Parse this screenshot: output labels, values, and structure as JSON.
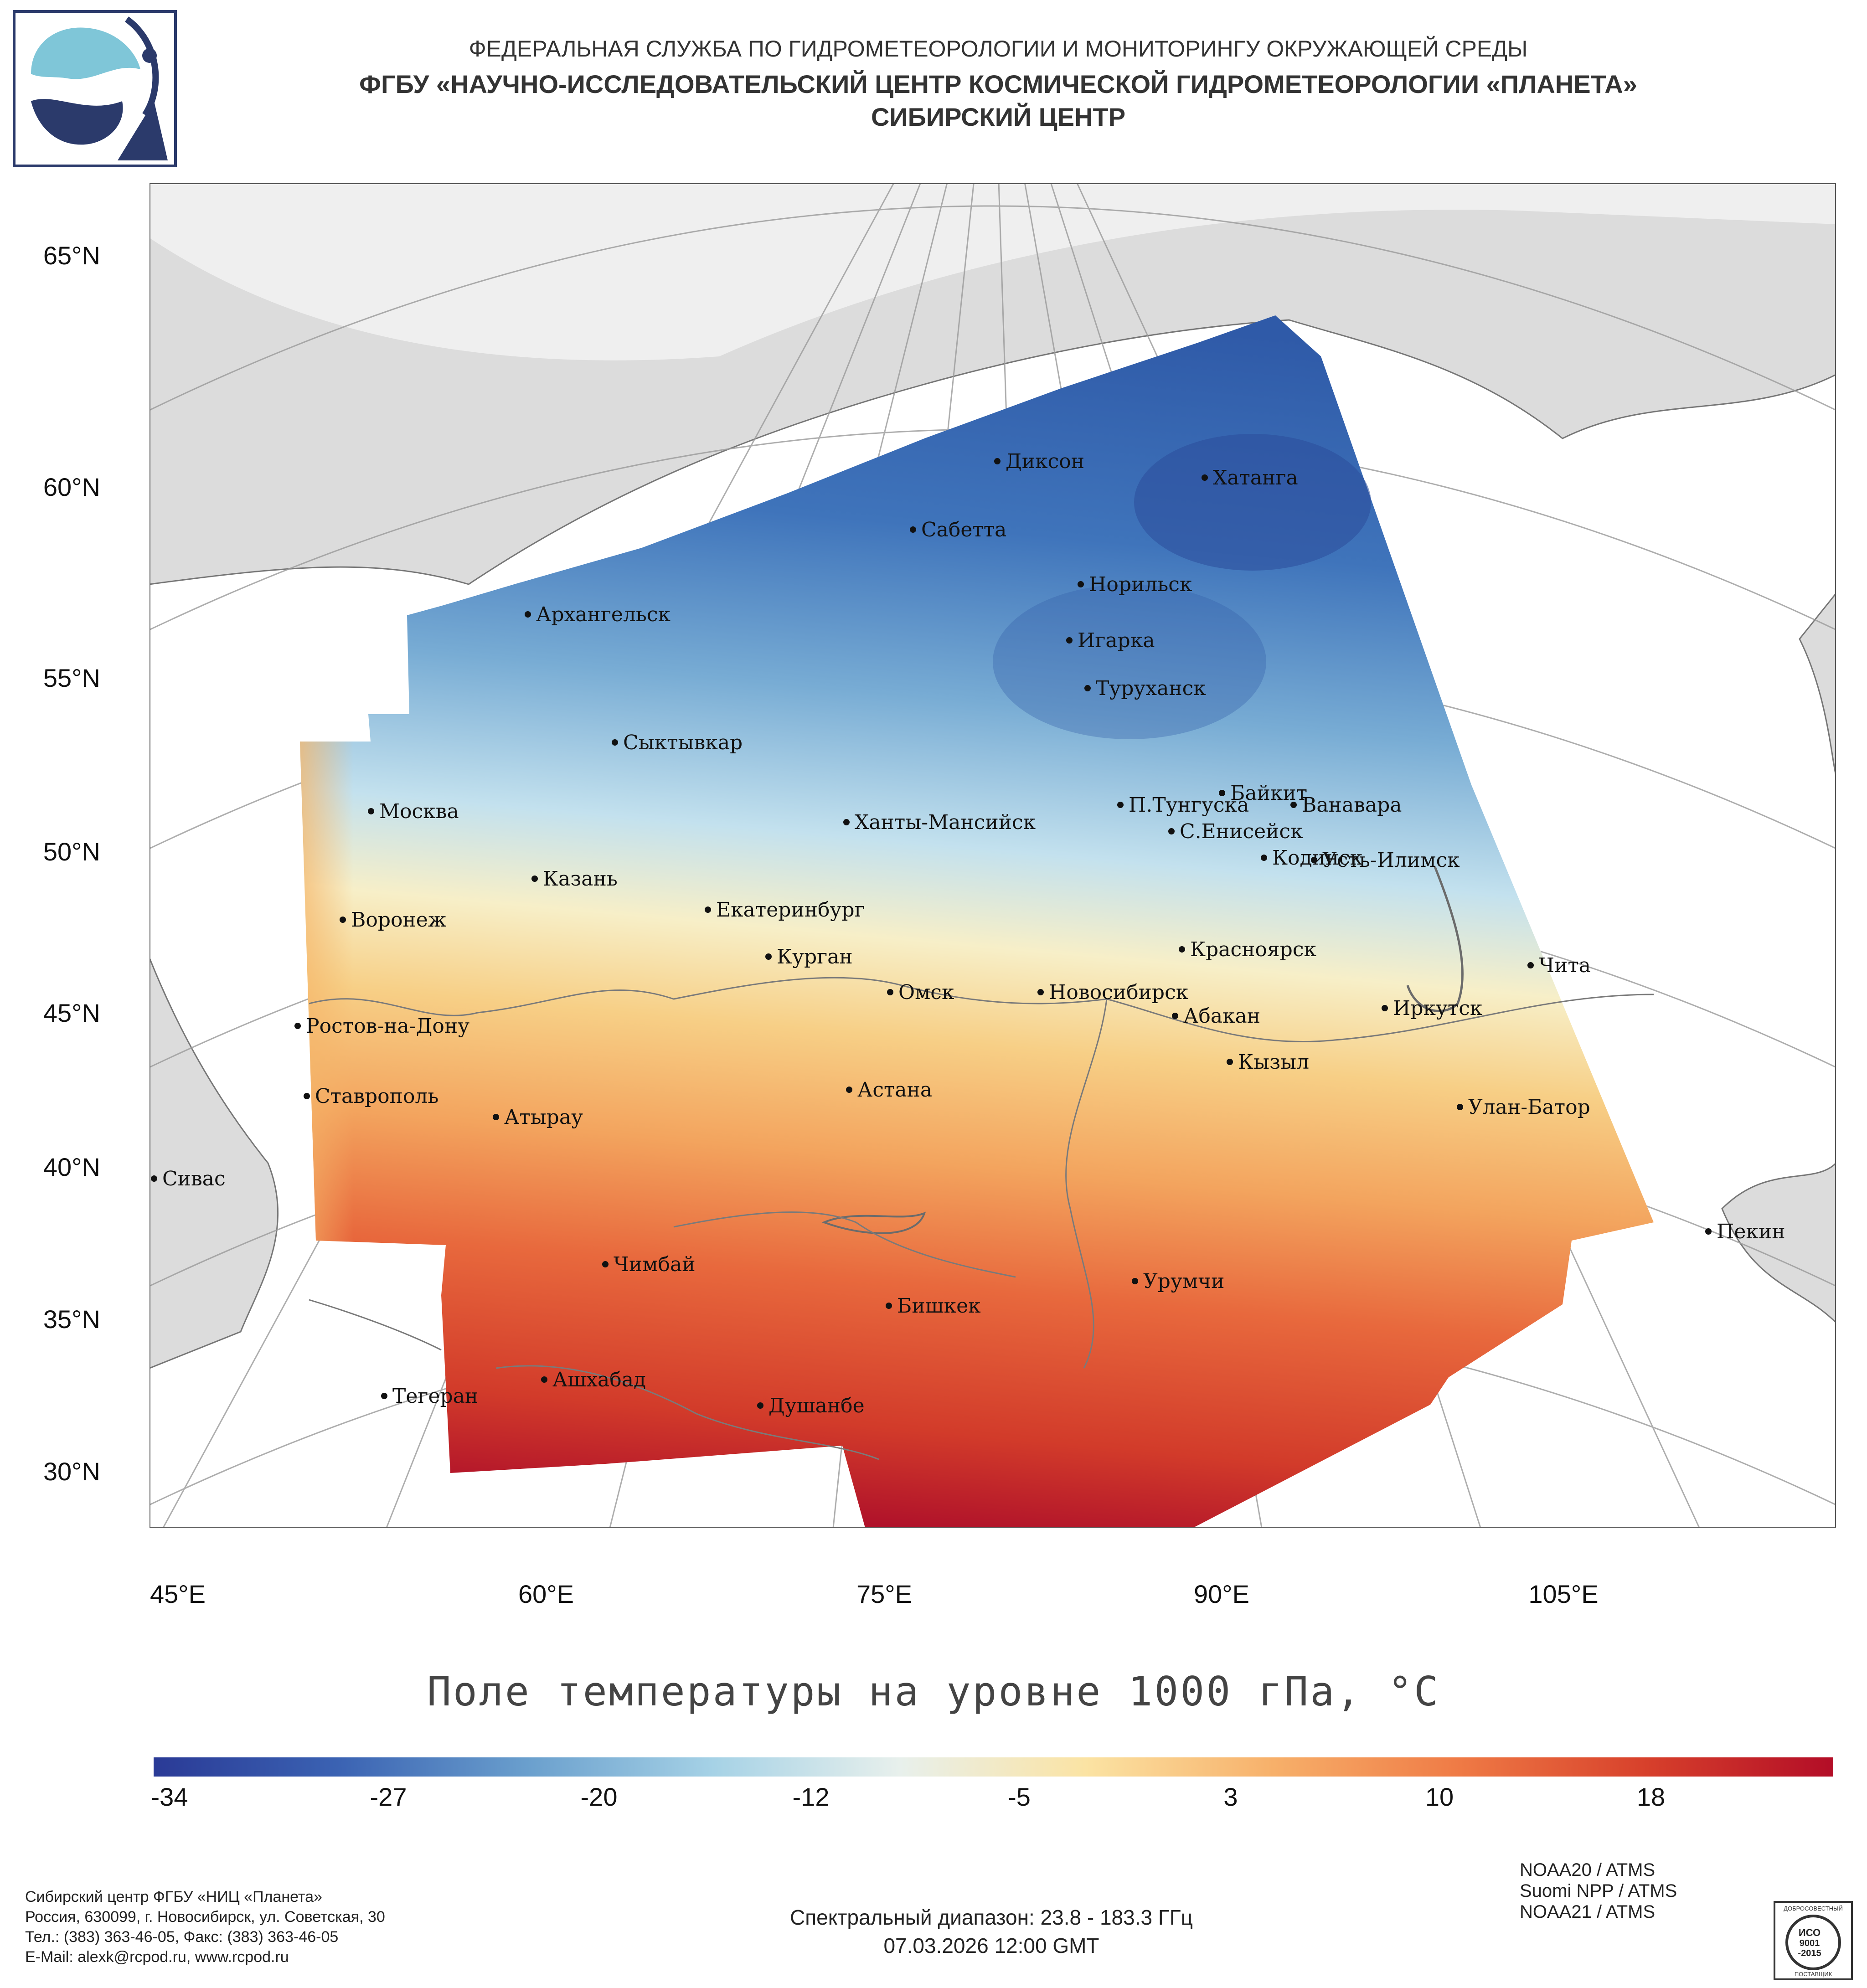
{
  "header": {
    "line1": "ФЕДЕРАЛЬНАЯ СЛУЖБА ПО ГИДРОМЕТЕОРОЛОГИИ И МОНИТОРИНГУ ОКРУЖАЮЩЕЙ СРЕДЫ",
    "line2": "ФГБУ «НАУЧНО-ИССЛЕДОВАТЕЛЬСКИЙ ЦЕНТР КОСМИЧЕСКОЙ ГИДРОМЕТЕОРОЛОГИИ «ПЛАНЕТА»",
    "line3": "СИБИРСКИЙ ЦЕНТР"
  },
  "map": {
    "lat_labels": [
      "65°N",
      "60°N",
      "55°N",
      "50°N",
      "45°N",
      "40°N",
      "35°N",
      "30°N"
    ],
    "lon_labels": [
      "45°E",
      "60°E",
      "75°E",
      "90°E",
      "105°E"
    ],
    "cities": [
      "Диксон",
      "Хатанга",
      "Сабетта",
      "Норильск",
      "Архангельск",
      "Игарка",
      "Туруханск",
      "Сыктывкар",
      "Байкит",
      "П.Тунгуска",
      "Ванавара",
      "Москва",
      "Ханты-Мансийск",
      "С.Енисейск",
      "Кодинск",
      "Усть-Илимск",
      "Казань",
      "Екатеринбург",
      "Воронеж",
      "Красноярск",
      "Курган",
      "Чита",
      "Омск",
      "Новосибирск",
      "Ростов-на-Дону",
      "Иркутск",
      "Абакан",
      "Кызыл",
      "Астана",
      "Ставрополь",
      "Улан-Батор",
      "Атырау",
      "Сивас",
      "Пекин",
      "Чимбай",
      "Урумчи",
      "Бишкек",
      "Ашхабад",
      "Тегеран",
      "Душанбе"
    ],
    "title": "Поле температуры на уровне 1000 гПа, °C"
  },
  "colorbar": {
    "ticks": [
      "-34",
      "-27",
      "-20",
      "-12",
      "-5",
      "3",
      "10",
      "18"
    ],
    "colors": [
      "#2a3a96",
      "#3b63b3",
      "#6a9fcd",
      "#a6d2e6",
      "#e8f0ec",
      "#fbe3a3",
      "#f7b06a",
      "#ef7a45",
      "#d7402b",
      "#b30d27"
    ]
  },
  "footer": {
    "spectral": "Спектральный диапазон: 23.8 - 183.3 ГГц",
    "datetime": "07.03.2026 12:00 GMT",
    "sensors": [
      "NOAA20 / ATMS",
      "Suomi NPP / ATMS",
      "NOAA21 / ATMS"
    ],
    "contact": [
      "Сибирский центр ФГБУ «НИЦ «Планета»",
      "Россия, 630099, г. Новосибирск, ул. Советская, 30",
      "Тел.: (383) 363-46-05, Факс: (383) 363-46-05",
      "E-Mail: alexk@rcpod.ru, www.rcpod.ru"
    ],
    "iso": [
      "ДОБРОСОВЕСТНЫЙ",
      "ИСО",
      "9001",
      "-2015",
      "ПОСТАВЩИК"
    ]
  }
}
